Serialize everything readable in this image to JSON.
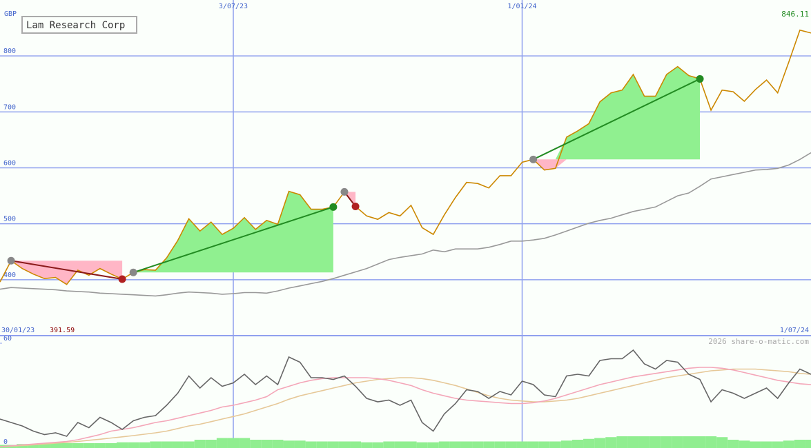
{
  "title": "Lam Research Corp",
  "currency": "GBP",
  "watermark": "2026 share-o-matic.com",
  "chart_data": [
    {
      "type": "line",
      "start_label": "30/01/23",
      "end_label": "1/07/24",
      "high_label": "846.11",
      "low_label": "391.59",
      "categories": [
        null,
        null,
        null,
        null,
        null,
        null,
        null,
        null,
        null,
        null,
        null,
        null,
        null,
        null,
        null,
        null,
        null,
        null,
        null,
        null,
        null,
        "3/07/23",
        null,
        null,
        null,
        null,
        null,
        null,
        null,
        null,
        null,
        null,
        null,
        null,
        null,
        null,
        null,
        null,
        null,
        null,
        null,
        null,
        null,
        null,
        null,
        null,
        null,
        "1/01/24",
        null,
        null,
        null,
        null,
        null,
        null,
        null,
        null,
        null,
        null,
        null,
        null,
        null,
        null,
        null,
        null,
        null,
        null,
        null,
        null,
        null,
        null,
        null,
        null,
        null,
        null
      ],
      "ylim": [
        300,
        900
      ],
      "yticks": [
        400,
        500,
        600,
        700,
        800
      ],
      "grid": true,
      "grid_color": "#8fa0ee",
      "tick_color": "#4466cc",
      "series": [
        {
          "color": "#999999",
          "values": [
            383,
            386,
            385,
            384,
            383,
            382,
            380,
            379,
            378,
            376,
            375,
            374,
            373,
            372,
            371,
            373,
            376,
            378,
            377,
            376,
            374,
            375,
            377,
            377,
            376,
            380,
            385,
            389,
            393,
            397,
            402,
            408,
            414,
            420,
            428,
            436,
            440,
            443,
            446,
            453,
            450,
            455,
            455,
            455,
            458,
            463,
            469,
            469,
            471,
            474,
            480,
            487,
            494,
            501,
            506,
            510,
            516,
            522,
            526,
            530,
            540,
            550,
            555,
            567,
            580,
            584,
            588,
            592,
            596,
            597,
            599,
            605,
            615,
            627
          ]
        },
        {
          "color": "#cc8800",
          "values": [
            396,
            434,
            420,
            410,
            402,
            404,
            391.59,
            417,
            408,
            420,
            410,
            401,
            413,
            418,
            417,
            439,
            470,
            509,
            487,
            503,
            481,
            492,
            511,
            490,
            506,
            499,
            558,
            552,
            526,
            526,
            530,
            557,
            531,
            514,
            508,
            520,
            514,
            533,
            493,
            481,
            516,
            547,
            574,
            572,
            564,
            586,
            586,
            610,
            615,
            596,
            599,
            655,
            666,
            679,
            718,
            734,
            739,
            767,
            728,
            728,
            767,
            781,
            765,
            759,
            703,
            739,
            736,
            719,
            740,
            757,
            734,
            789,
            846.11,
            841
          ]
        }
      ],
      "trades": {
        "entry_color": "#888888",
        "win_color": "#228b22",
        "loss_color": "#b02020",
        "win_fill": "#90f090",
        "loss_fill": "#ffb6c6",
        "entries": [
          null,
          434,
          null,
          null,
          null,
          null,
          null,
          null,
          null,
          null,
          null,
          null,
          413,
          null,
          null,
          null,
          null,
          null,
          null,
          null,
          null,
          null,
          null,
          null,
          null,
          null,
          null,
          null,
          null,
          null,
          null,
          557,
          null,
          null,
          null,
          null,
          null,
          null,
          null,
          null,
          null,
          null,
          null,
          null,
          null,
          null,
          null,
          null,
          615,
          null,
          null,
          null,
          null,
          null,
          null,
          null,
          null,
          null,
          null,
          null,
          null,
          null,
          null,
          null,
          null,
          null,
          null,
          null,
          null,
          null,
          null,
          null,
          null,
          null
        ],
        "exits": [
          null,
          null,
          null,
          null,
          null,
          null,
          null,
          null,
          null,
          null,
          null,
          401,
          null,
          null,
          null,
          null,
          null,
          null,
          null,
          null,
          null,
          null,
          null,
          null,
          null,
          null,
          null,
          null,
          null,
          null,
          530,
          null,
          531,
          null,
          null,
          null,
          null,
          null,
          null,
          null,
          null,
          null,
          null,
          null,
          null,
          null,
          null,
          null,
          null,
          null,
          null,
          null,
          null,
          null,
          null,
          null,
          null,
          null,
          null,
          null,
          null,
          null,
          null,
          759,
          null,
          null,
          null,
          null,
          null,
          null,
          null,
          null,
          null,
          null
        ]
      }
    },
    {
      "type": "line",
      "ylim": [
        0,
        64
      ],
      "yticks": [
        0,
        60
      ],
      "grid": false,
      "series": [
        {
          "type": "bar",
          "color": "#90ee90",
          "values": [
            1,
            1,
            1.5,
            1.5,
            1.5,
            2,
            2,
            2,
            2,
            2,
            2,
            2.5,
            2.5,
            2.5,
            3,
            3,
            3,
            3,
            4,
            4,
            5,
            5,
            5,
            4,
            4,
            4,
            3.5,
            3.5,
            3,
            3,
            3,
            3,
            3,
            2.5,
            2.5,
            3,
            3,
            3,
            2.5,
            2.5,
            3,
            3,
            3,
            3,
            3,
            3,
            3,
            3,
            3,
            3,
            3,
            3.5,
            4,
            4.5,
            5,
            5.5,
            6,
            6,
            6,
            6,
            6,
            6,
            6,
            6,
            6,
            5.5,
            4,
            3.5,
            3,
            3,
            3,
            3.5,
            4,
            4
          ]
        },
        {
          "color": "#e6c898",
          "values": [
            0,
            0.3,
            0.6,
            1,
            1.5,
            2,
            2.5,
            3,
            3.7,
            4.3,
            5,
            5.7,
            6.4,
            7.2,
            8,
            9,
            10.5,
            12,
            13,
            14.5,
            16,
            17.5,
            19,
            21,
            23,
            25,
            27.5,
            29.5,
            31,
            32.5,
            34,
            35.5,
            37,
            38,
            39,
            39.5,
            40,
            40,
            39.5,
            38.5,
            37,
            35.5,
            33.5,
            31.5,
            29.5,
            28,
            27,
            26.5,
            26,
            26,
            26.5,
            27,
            28,
            29.5,
            31,
            32.5,
            34,
            35.5,
            37,
            38.5,
            40,
            41,
            42,
            43,
            44,
            44.5,
            45,
            45,
            45,
            44.5,
            44,
            43.5,
            42.5,
            42
          ]
        },
        {
          "color": "#f4a6b8",
          "values": [
            0,
            0.5,
            1,
            1.5,
            2,
            2.5,
            3,
            4,
            5.5,
            7,
            9,
            10,
            11,
            12.5,
            14,
            15,
            16.5,
            18,
            19.5,
            21,
            23,
            24,
            25.5,
            27,
            29,
            33,
            35,
            37,
            38.5,
            39.5,
            40,
            40,
            40,
            40,
            39.5,
            38.5,
            37,
            35.5,
            33,
            31,
            29.5,
            28,
            27,
            26.5,
            26,
            25.5,
            25,
            25,
            25.5,
            26.5,
            28,
            30,
            32,
            34,
            36,
            37.5,
            39,
            40.5,
            41.5,
            42.5,
            43.5,
            44.5,
            45.5,
            46,
            46,
            45.5,
            44.5,
            43,
            41.5,
            40,
            38.5,
            37.5,
            36.5,
            36
          ]
        },
        {
          "color": "#666666",
          "values": [
            16,
            14,
            12,
            9,
            7,
            8,
            6,
            14,
            11,
            17,
            14,
            10,
            15,
            17,
            18,
            24,
            31,
            41,
            34,
            40,
            35,
            37,
            42,
            36,
            41,
            36,
            52,
            49,
            40,
            40,
            39,
            41,
            35,
            28,
            26,
            27,
            24,
            27,
            14,
            9,
            19,
            25,
            33,
            32,
            28,
            32,
            30,
            38,
            36,
            30,
            29,
            41,
            42,
            41,
            50,
            51,
            51,
            56,
            48,
            45,
            50,
            49,
            42,
            39,
            26,
            33,
            31,
            28,
            31,
            34,
            28,
            37,
            45,
            42
          ]
        }
      ]
    }
  ]
}
